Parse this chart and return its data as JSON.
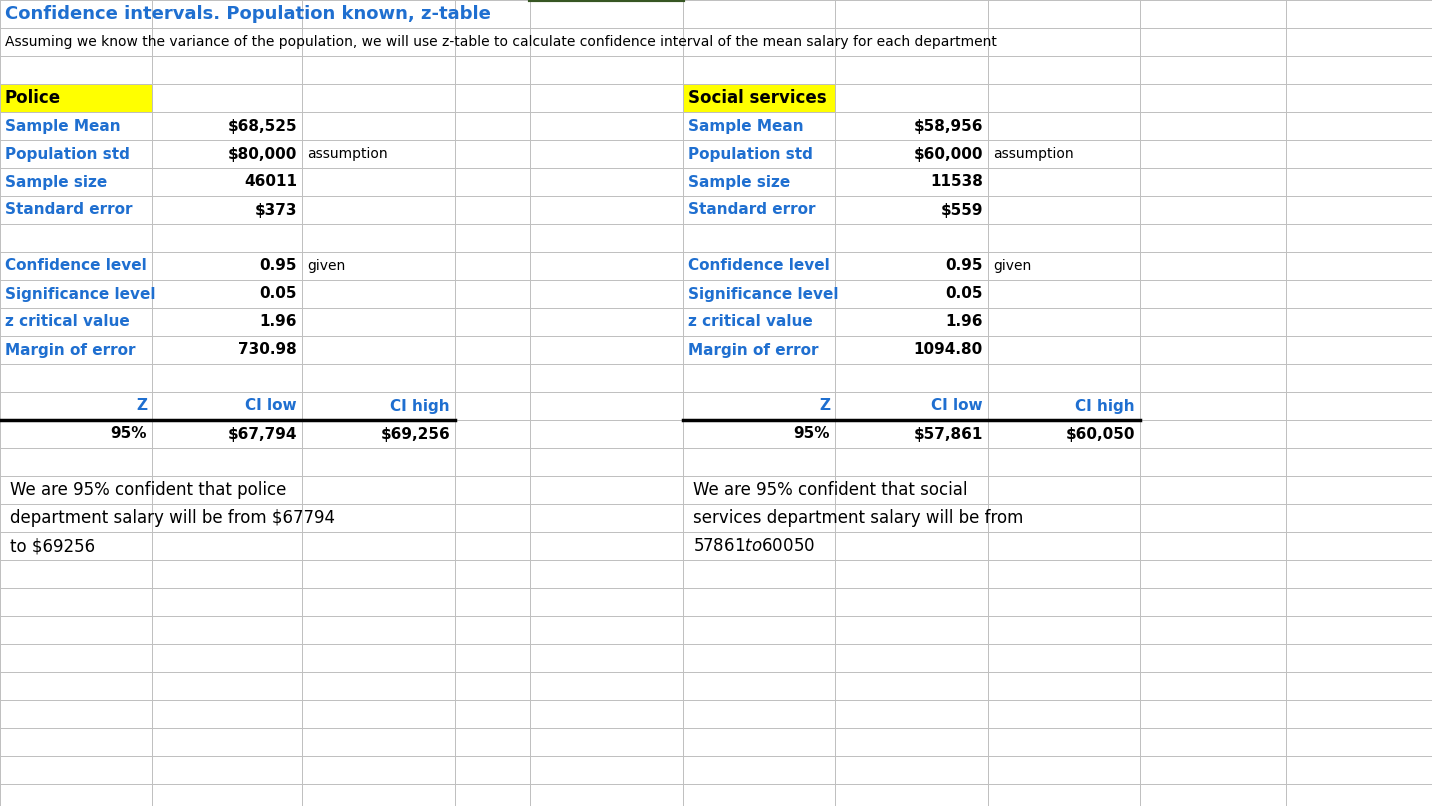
{
  "title": "Confidence intervals. Population known, z-table",
  "subtitle": "Assuming we know the variance of the population, we will use z-table to calculate confidence interval of the mean salary for each department",
  "title_color": "#1F6FD0",
  "subtitle_color": "#000000",
  "bg_color": "#FFFFFF",
  "grid_color": "#BFBFBF",
  "blue_text_color": "#1F6FD0",
  "black_text_color": "#000000",
  "yellow_bg": "#FFFF00",
  "green_border": "#375623",
  "cols": [
    0,
    152,
    302,
    455,
    530,
    683,
    835,
    988,
    1140,
    1286,
    1432
  ],
  "rows": [
    0,
    28,
    56,
    84,
    112,
    140,
    168,
    196,
    224,
    252,
    280,
    308,
    336,
    364,
    392,
    420,
    448,
    476,
    504,
    532,
    560,
    588,
    616,
    644,
    672,
    700,
    728,
    756,
    784,
    806
  ],
  "police": {
    "label": "Police",
    "sample_mean": "$68,525",
    "population_std": "$80,000",
    "sample_size": "46011",
    "standard_error": "$373",
    "confidence_level": "0.95",
    "significance_level": "0.05",
    "z_critical": "1.96",
    "margin_of_error": "730.98",
    "z_label": "95%",
    "ci_low": "$67,794",
    "ci_high": "$69,256",
    "conclusion_line1": "We are 95% confident that police",
    "conclusion_line2": "department salary will be from $67794",
    "conclusion_line3": "to $69256"
  },
  "social": {
    "label": "Social services",
    "sample_mean": "$58,956",
    "population_std": "$60,000",
    "sample_size": "11538",
    "standard_error": "$559",
    "confidence_level": "0.95",
    "significance_level": "0.05",
    "z_critical": "1.96",
    "margin_of_error": "1094.80",
    "z_label": "95%",
    "ci_low": "$57,861",
    "ci_high": "$60,050",
    "conclusion_line1": "We are 95% confident that social",
    "conclusion_line2": "services department salary will be from",
    "conclusion_line3": "$57861 to $60050"
  }
}
